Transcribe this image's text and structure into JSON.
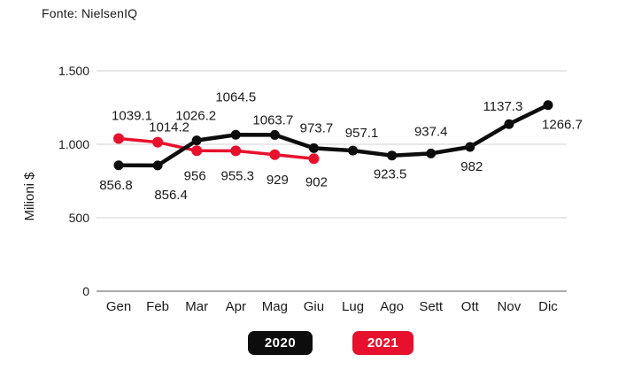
{
  "source_note": "Fonte: NielsenIQ",
  "colors": {
    "series_2020": "#0d0d0d",
    "series_2021": "#e8112d",
    "grid": "#d9d9d9",
    "axis_line": "#aaaaaa",
    "text": "#1a1a1a",
    "legend_text": "#ffffff"
  },
  "legend": [
    {
      "label": "2020",
      "color": "#0d0d0d"
    },
    {
      "label": "2021",
      "color": "#e8112d"
    }
  ],
  "chart_data": {
    "type": "line",
    "title": "",
    "xlabel": "",
    "ylabel": "Milioni $",
    "categories": [
      "Gen",
      "Feb",
      "Mar",
      "Apr",
      "Mag",
      "Giu",
      "Lug",
      "Ago",
      "Sett",
      "Ott",
      "Nov",
      "Dic"
    ],
    "series": [
      {
        "name": "2020",
        "color": "#0d0d0d",
        "values": [
          856.8,
          856.4,
          1026.2,
          1064.5,
          1063.7,
          973.7,
          957.1,
          923.5,
          937.4,
          982,
          1137.3,
          1266.7
        ],
        "label_offsets": [
          [
            -3,
            22
          ],
          [
            15,
            33
          ],
          [
            -1,
            -28
          ],
          [
            0,
            -43
          ],
          [
            -2,
            -17
          ],
          [
            3,
            -23
          ],
          [
            10,
            -20
          ],
          [
            -2,
            21
          ],
          [
            0,
            -25
          ],
          [
            2,
            22
          ],
          [
            -7,
            -20
          ],
          [
            16,
            22
          ]
        ]
      },
      {
        "name": "2021",
        "color": "#e8112d",
        "values": [
          1039.1,
          1014.2,
          956,
          955.3,
          929,
          902
        ],
        "label_offsets": [
          [
            15,
            -26
          ],
          [
            13,
            -17
          ],
          [
            -2,
            28
          ],
          [
            2,
            28
          ],
          [
            3,
            28
          ],
          [
            3,
            26
          ]
        ]
      }
    ],
    "ylim": [
      0,
      1500
    ],
    "yticks": [
      0,
      500,
      1000,
      1500
    ],
    "ytick_labels": [
      "0",
      "500",
      "1.000",
      "1.500"
    ],
    "grid": true,
    "legend_position": "bottom"
  }
}
